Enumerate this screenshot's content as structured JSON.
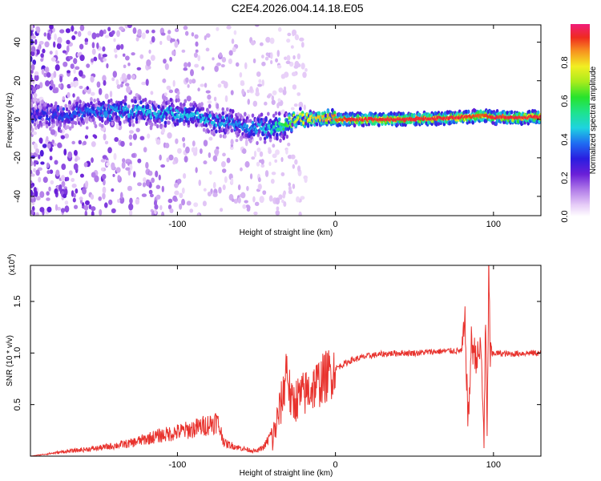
{
  "figure": {
    "title": "C2E4.2026.004.14.18.E05"
  },
  "chart_data": [
    {
      "type": "heatmap",
      "name": "spectrogram",
      "title": "C2E4.2026.004.14.18.E05",
      "xlabel": "Height of straight line (km)",
      "ylabel": "Frequency (Hz)",
      "xlim": [
        -193,
        130
      ],
      "ylim": [
        -50,
        49
      ],
      "xticks": [
        -100,
        0,
        100
      ],
      "xtick_labels": [
        "-100",
        "0",
        "100"
      ],
      "yticks": [
        -40,
        -20,
        0,
        20,
        40
      ],
      "ytick_labels": [
        "-40",
        "-20",
        "0",
        "20",
        "40"
      ],
      "colorbar": {
        "label": "Normalized spectral amplitude",
        "range": [
          0,
          1
        ],
        "ticks": [
          0.0,
          0.2,
          0.4,
          0.6,
          0.8
        ],
        "tick_labels": [
          "0.0",
          "0.2",
          "0.4",
          "0.6",
          "0.8"
        ]
      },
      "ridge": {
        "description_points_x": [
          -190,
          -150,
          -120,
          -100,
          -80,
          -60,
          -45,
          -35,
          -25,
          -15,
          -5,
          0,
          10,
          50,
          80,
          92,
          100,
          130
        ],
        "center_hz": [
          2,
          4,
          4,
          3,
          0,
          -3,
          -5,
          -4,
          0,
          1,
          0,
          0,
          0,
          0,
          1,
          2,
          1,
          1
        ],
        "peak_amplitude": [
          0.3,
          0.4,
          0.45,
          0.45,
          0.45,
          0.4,
          0.45,
          0.55,
          0.75,
          0.8,
          0.85,
          0.9,
          0.95,
          0.95,
          0.95,
          0.9,
          0.95,
          0.95
        ]
      }
    },
    {
      "type": "line",
      "name": "snr",
      "xlabel": "Height of straight line (km)",
      "ylabel": "SNR (10 * v/v)",
      "exponent_label": "(x10",
      "exponent_power": "4",
      "xlim": [
        -193,
        130
      ],
      "ylim": [
        0,
        1.85
      ],
      "xticks": [
        -100,
        0,
        100
      ],
      "xtick_labels": [
        "-100",
        "0",
        "100"
      ],
      "yticks": [
        0.5,
        1.0,
        1.5
      ],
      "ytick_labels": [
        "0.5",
        "1.0",
        "1.5"
      ],
      "color": "#e8322d",
      "series": [
        {
          "name": "SNR",
          "x": [
            -193,
            -170,
            -150,
            -130,
            -115,
            -100,
            -90,
            -80,
            -75,
            -70,
            -60,
            -50,
            -45,
            -40,
            -36,
            -33,
            -31,
            -28,
            -25,
            -20,
            -10,
            0,
            10,
            20,
            30,
            40,
            50,
            60,
            70,
            80,
            82,
            84,
            86,
            88,
            90,
            92,
            94,
            95,
            96,
            97,
            98,
            100,
            110,
            120,
            130
          ],
          "y": [
            0.0,
            0.03,
            0.05,
            0.08,
            0.12,
            0.15,
            0.17,
            0.2,
            0.22,
            0.08,
            0.05,
            0.03,
            0.06,
            0.15,
            0.4,
            0.6,
            0.9,
            0.5,
            0.55,
            0.6,
            0.72,
            0.85,
            0.93,
            0.97,
            0.99,
            1.0,
            1.0,
            1.01,
            1.02,
            1.02,
            1.28,
            0.3,
            1.1,
            1.0,
            0.95,
            1.05,
            0.2,
            1.3,
            0.1,
            1.85,
            0.95,
            1.0,
            0.99,
            1.0,
            1.0
          ]
        }
      ],
      "noise_amplitude_description": "high-frequency jagged noise; strongest between -40 and 0 km and around 80-98 km"
    }
  ]
}
